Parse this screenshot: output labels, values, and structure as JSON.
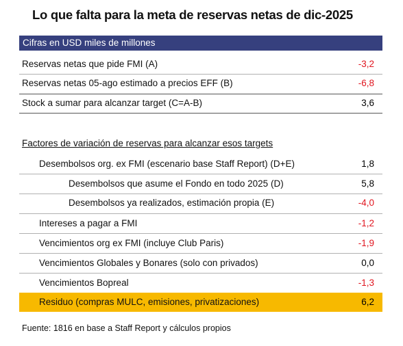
{
  "title": "Lo que falta para la meta de reservas netas de dic-2025",
  "header": "Cifras en USD miles de millones",
  "summary_rows": [
    [
      "Reservas netas que pide FMI (A)",
      "-3,2"
    ],
    [
      "Reservas netas 05-ago estimado a precios EFF (B)",
      "-6,8"
    ],
    [
      "Stock a sumar para alcanzar target (C=A-B)",
      "3,6"
    ]
  ],
  "section_title": "Factores de variación de reservas para alcanzar esos targets",
  "factor_rows": [
    [
      "Desembolsos org. ex FMI (escenario base Staff Report) (D+E)",
      "1,8"
    ],
    [
      "Desembolsos que asume el Fondo en todo 2025 (D)",
      "5,8"
    ],
    [
      "Desembolsos ya realizados, estimación propia (E)",
      "-4,0"
    ],
    [
      "Intereses a pagar a FMI",
      "-1,2"
    ],
    [
      "Vencimientos org ex FMI (incluye Club Paris)",
      "-1,9"
    ],
    [
      "Vencimientos Globales y Bonares (solo con privados)",
      "0,0"
    ],
    [
      "Vencimientos Bopreal",
      "-1,3"
    ],
    [
      "Residuo (compras MULC, emisiones, privatizaciones)",
      "6,2"
    ]
  ],
  "footnote": "Fuente: 1816 en base a Staff Report y cálculos propios"
}
